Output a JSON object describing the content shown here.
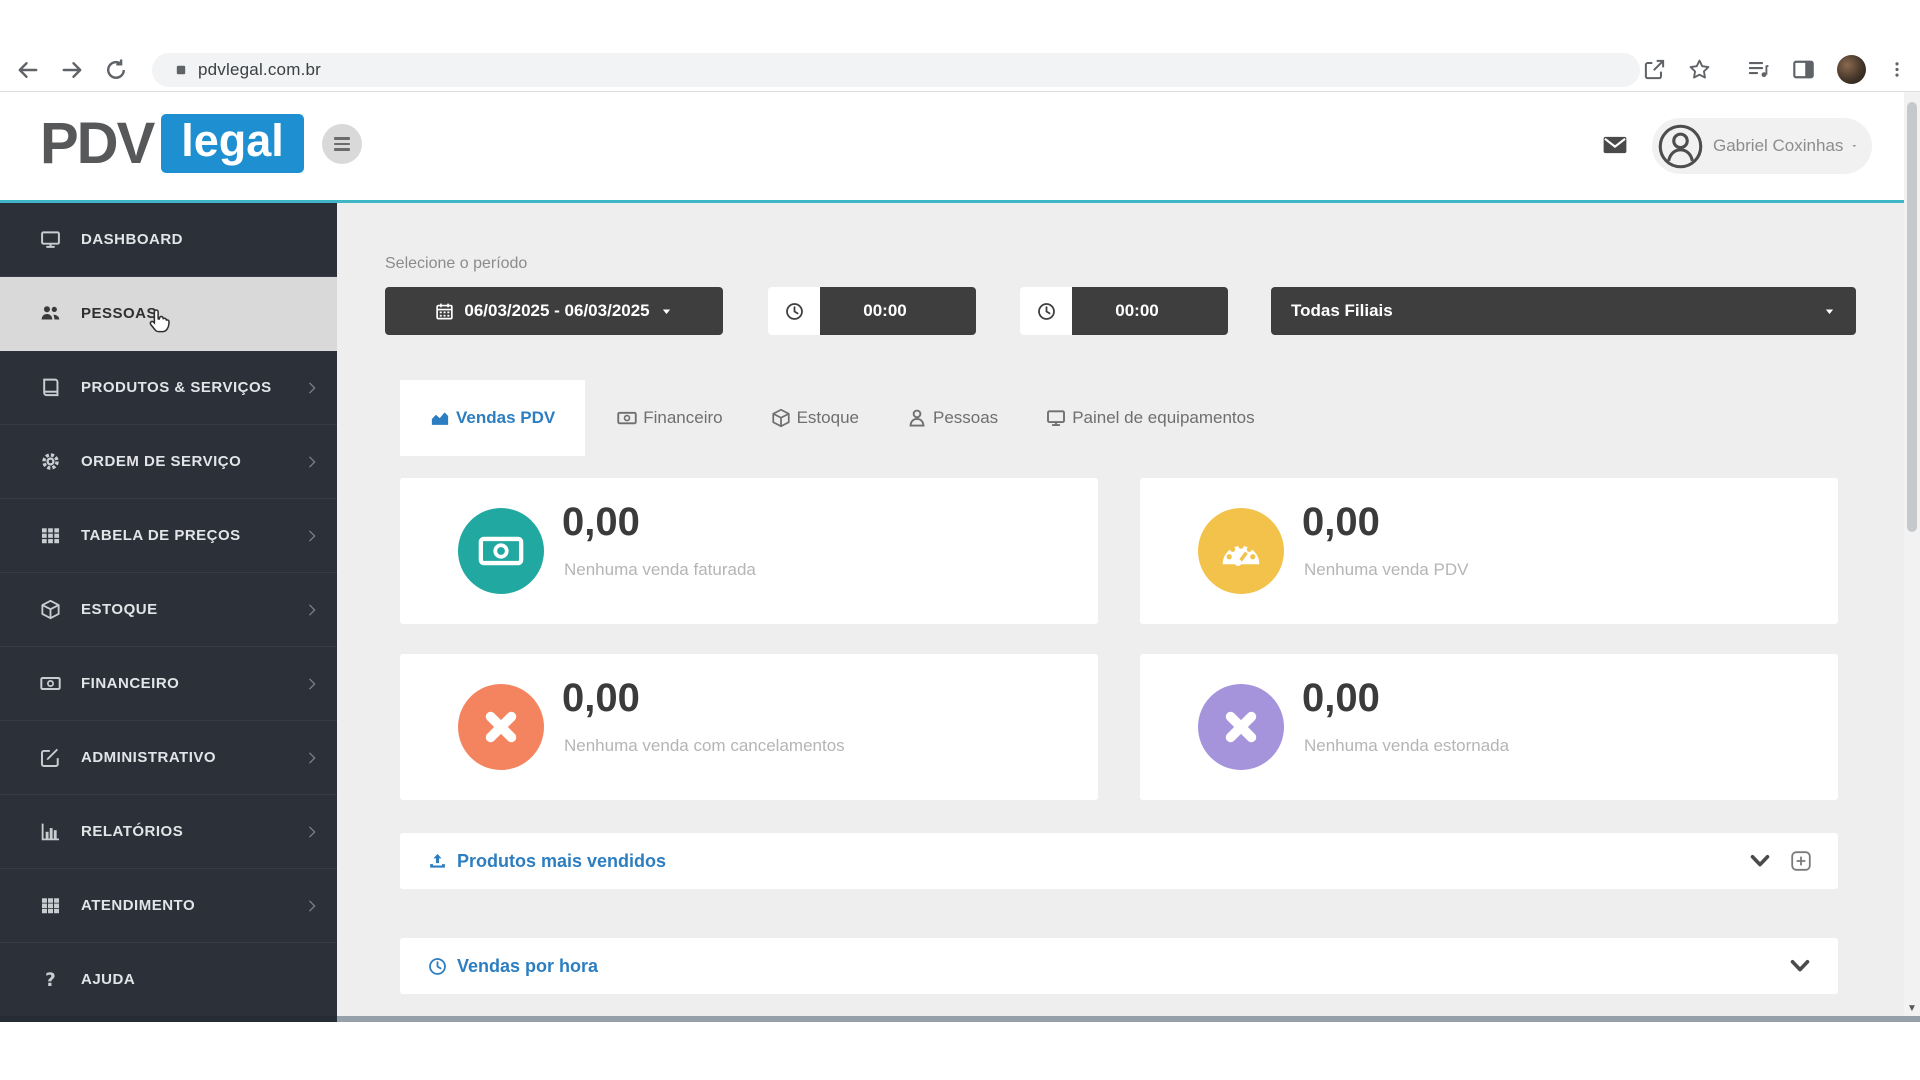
{
  "browser": {
    "url": "pdvlegal.com.br",
    "nav_icons": [
      "back",
      "forward",
      "reload"
    ],
    "action_icons": [
      "share",
      "bookmark-star",
      "reading-list",
      "side-panel",
      "profile",
      "kebab-menu"
    ]
  },
  "header": {
    "logo_pdv": "PDV",
    "logo_legal": "legal",
    "user_name": "Gabriel Coxinhas"
  },
  "colors": {
    "accent_blue": "#2d7ec0",
    "logo_blue": "#1e8fd0",
    "divider_teal": "#3fb6c6",
    "sidebar_bg": "#2b3039",
    "control_dark": "#3e3e3e"
  },
  "sidebar": {
    "items": [
      {
        "label": "DASHBOARD",
        "icon": "monitor",
        "active": false,
        "chevron": false
      },
      {
        "label": "PESSOAS",
        "icon": "users",
        "active": true,
        "chevron": false
      },
      {
        "label": "PRODUTOS & SERVIÇOS",
        "icon": "book",
        "active": false,
        "chevron": true
      },
      {
        "label": "ORDEM DE SERVIÇO",
        "icon": "gear",
        "active": false,
        "chevron": true
      },
      {
        "label": "TABELA DE PREÇOS",
        "icon": "table",
        "active": false,
        "chevron": true
      },
      {
        "label": "ESTOQUE",
        "icon": "cube",
        "active": false,
        "chevron": true
      },
      {
        "label": "FINANCEIRO",
        "icon": "banknote",
        "active": false,
        "chevron": true
      },
      {
        "label": "ADMINISTRATIVO",
        "icon": "pencil-square",
        "active": false,
        "chevron": true
      },
      {
        "label": "RELATÓRIOS",
        "icon": "bar-chart",
        "active": false,
        "chevron": true
      },
      {
        "label": "ATENDIMENTO",
        "icon": "grid",
        "active": false,
        "chevron": true
      },
      {
        "label": "AJUDA",
        "icon": "question",
        "active": false,
        "chevron": false
      }
    ]
  },
  "filters": {
    "label": "Selecione o período",
    "date_range": "06/03/2025 - 06/03/2025",
    "time_from": "00:00",
    "time_to": "00:00",
    "branch": "Todas Filiais"
  },
  "tabs": {
    "items": [
      {
        "label": "Vendas PDV",
        "icon": "area-chart",
        "active": true
      },
      {
        "label": "Financeiro",
        "icon": "banknote",
        "active": false
      },
      {
        "label": "Estoque",
        "icon": "cube",
        "active": false
      },
      {
        "label": "Pessoas",
        "icon": "person",
        "active": false
      },
      {
        "label": "Painel de equipamentos",
        "icon": "monitor",
        "active": false
      }
    ]
  },
  "cards": {
    "items": [
      {
        "value": "0,00",
        "caption": "Nenhuma venda faturada",
        "color": "#21a8a0",
        "icon": "banknote"
      },
      {
        "value": "0,00",
        "caption": "Nenhuma venda PDV",
        "color": "#f2c24a",
        "icon": "gauge"
      },
      {
        "value": "0,00",
        "caption": "Nenhuma venda com cancelamentos",
        "color": "#f4845f",
        "icon": "x-mark"
      },
      {
        "value": "0,00",
        "caption": "Nenhuma venda estornada",
        "color": "#a593dc",
        "icon": "x-mark"
      }
    ]
  },
  "panels": {
    "items": [
      {
        "title": "Produtos mais vendidos",
        "icon": "upload",
        "controls": [
          "collapse",
          "add"
        ]
      },
      {
        "title": "Vendas por hora",
        "icon": "clock",
        "controls": [
          "collapse"
        ]
      }
    ]
  }
}
